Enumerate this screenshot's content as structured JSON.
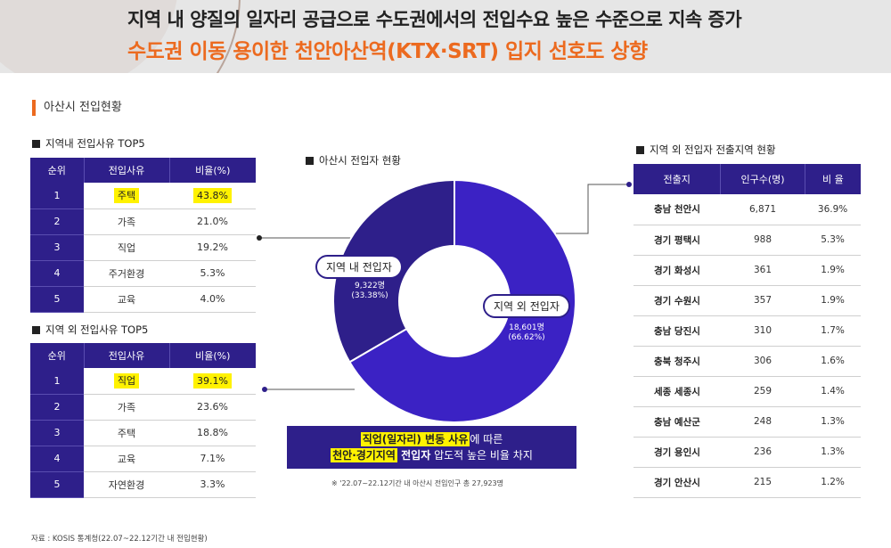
{
  "header": {
    "line1": "지역 내 양질의 일자리 공급으로 수도권에서의 전입수요 높은 수준으로 지속 증가",
    "line2": "수도권 이동 용이한 천안아산역(KTX·SRT) 입지 선호도 상향"
  },
  "section_title": "아산시 전입현황",
  "inner_table": {
    "title": "지역내 전입사유 TOP5",
    "headers": [
      "순위",
      "전입사유",
      "비율(%)"
    ],
    "rows": [
      {
        "rank": "1",
        "reason": "주택",
        "ratio": "43.8%"
      },
      {
        "rank": "2",
        "reason": "가족",
        "ratio": "21.0%"
      },
      {
        "rank": "3",
        "reason": "직업",
        "ratio": "19.2%"
      },
      {
        "rank": "4",
        "reason": "주거환경",
        "ratio": "5.3%"
      },
      {
        "rank": "5",
        "reason": "교육",
        "ratio": "4.0%"
      }
    ]
  },
  "outer_table": {
    "title": "지역 외 전입사유 TOP5",
    "headers": [
      "순위",
      "전입사유",
      "비율(%)"
    ],
    "rows": [
      {
        "rank": "1",
        "reason": "직업",
        "ratio": "39.1%"
      },
      {
        "rank": "2",
        "reason": "가족",
        "ratio": "23.6%"
      },
      {
        "rank": "3",
        "reason": "주택",
        "ratio": "18.8%"
      },
      {
        "rank": "4",
        "reason": "교육",
        "ratio": "7.1%"
      },
      {
        "rank": "5",
        "reason": "자연환경",
        "ratio": "3.3%"
      }
    ]
  },
  "chart_data": {
    "type": "pie",
    "title": "아산시 전입자 현황",
    "categories": [
      "지역 내 전입자",
      "지역 외 전입자"
    ],
    "values": [
      9322,
      18601
    ],
    "percent": [
      33.38,
      66.62
    ],
    "value_labels": [
      "9,322명",
      "18,601명"
    ],
    "percent_labels": [
      "(33.38%)",
      "(66.62%)"
    ],
    "colors": [
      "#2e1f8a",
      "#3b22c4"
    ]
  },
  "summary": {
    "line1_hl": "직업(일자리) 변동 사유",
    "line1_rest": "에 따른",
    "line2_hl": "천안·경기지역",
    "line2_mid": " 전입자",
    "line2_rest": " 압도적 높은 비율 차지"
  },
  "note": "※ '22.07~22.12기간 내 아산시 전입인구 총 27,923명",
  "region_table": {
    "title": "지역 외 전입자 전출지역 현황",
    "headers": [
      "전출지",
      "인구수(명)",
      "비 율"
    ],
    "rows": [
      {
        "region": "충남 천안시",
        "pop": "6,871",
        "ratio": "36.9%"
      },
      {
        "region": "경기 평택시",
        "pop": "988",
        "ratio": "5.3%"
      },
      {
        "region": "경기 화성시",
        "pop": "361",
        "ratio": "1.9%"
      },
      {
        "region": "경기 수원시",
        "pop": "357",
        "ratio": "1.9%"
      },
      {
        "region": "충남 당진시",
        "pop": "310",
        "ratio": "1.7%"
      },
      {
        "region": "충북 청주시",
        "pop": "306",
        "ratio": "1.6%"
      },
      {
        "region": "세종 세종시",
        "pop": "259",
        "ratio": "1.4%"
      },
      {
        "region": "충남 예산군",
        "pop": "248",
        "ratio": "1.3%"
      },
      {
        "region": "경기 용인시",
        "pop": "236",
        "ratio": "1.3%"
      },
      {
        "region": "경기 안산시",
        "pop": "215",
        "ratio": "1.2%"
      }
    ]
  },
  "source": "자료 : KOSIS 통계청(22.07~22.12기간 내 전입현황)"
}
